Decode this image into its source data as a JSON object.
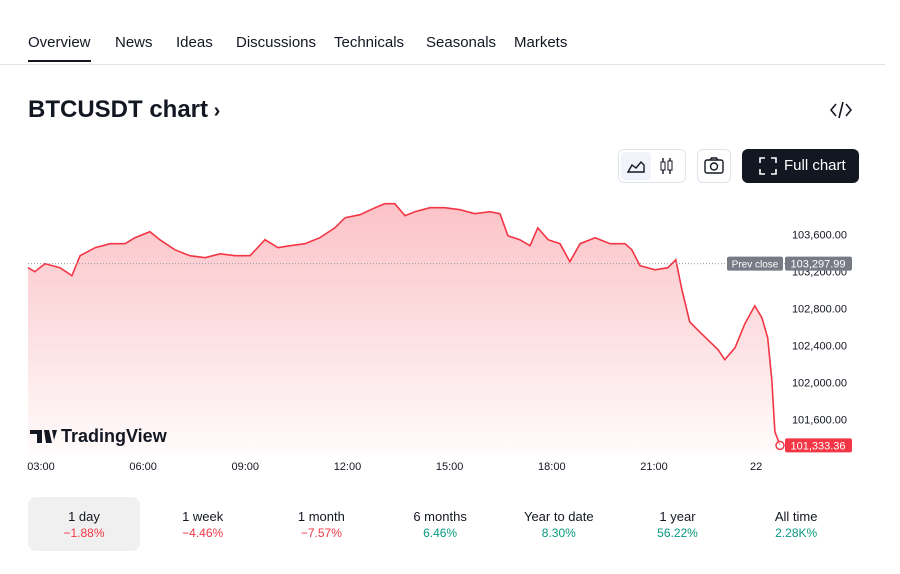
{
  "nav": {
    "tabs": [
      "Overview",
      "News",
      "Ideas",
      "Discussions",
      "Technicals",
      "Seasonals",
      "Markets"
    ],
    "active": 0
  },
  "header": {
    "title": "BTCUSDT chart",
    "full_chart": "Full chart"
  },
  "chart_data": {
    "type": "area",
    "color": "#f23645",
    "watermark": "TradingView",
    "x": [
      2.62,
      2.82,
      3.12,
      3.56,
      3.91,
      4.15,
      4.59,
      5.03,
      5.47,
      5.76,
      6.2,
      6.49,
      6.93,
      7.37,
      7.82,
      8.26,
      8.7,
      9.14,
      9.58,
      9.96,
      10.31,
      10.75,
      11.19,
      11.63,
      11.93,
      12.37,
      12.81,
      13.1,
      13.39,
      13.69,
      13.98,
      14.42,
      14.86,
      15.3,
      15.74,
      16.18,
      16.48,
      16.71,
      17.06,
      17.36,
      17.59,
      17.89,
      18.24,
      18.53,
      18.83,
      19.27,
      19.71,
      20.15,
      20.35,
      20.59,
      21.03,
      21.41,
      21.64,
      21.82,
      22.05,
      22.34,
      22.64,
      22.88,
      23.08,
      23.38,
      23.67,
      23.96,
      24.17,
      24.34,
      24.46,
      24.55,
      24.7
    ],
    "values": [
      103254,
      103211,
      103297,
      103254,
      103168,
      103384,
      103470,
      103514,
      103514,
      103578,
      103643,
      103557,
      103449,
      103384,
      103362,
      103405,
      103384,
      103384,
      103557,
      103470,
      103492,
      103514,
      103578,
      103686,
      103795,
      103827,
      103903,
      103946,
      103946,
      103816,
      103859,
      103903,
      103903,
      103881,
      103838,
      103859,
      103838,
      103600,
      103557,
      103492,
      103686,
      103557,
      103514,
      103319,
      103514,
      103578,
      103514,
      103514,
      103449,
      103276,
      103232,
      103254,
      103341,
      103016,
      102670,
      102562,
      102454,
      102368,
      102260,
      102389,
      102649,
      102843,
      102714,
      102497,
      102043,
      101481,
      101333.36
    ],
    "xlim": [
      2.62,
      24.7
    ],
    "xticks": [
      {
        "value": 3,
        "label": "03:00"
      },
      {
        "value": 6,
        "label": "06:00"
      },
      {
        "value": 9,
        "label": "09:00"
      },
      {
        "value": 12,
        "label": "12:00"
      },
      {
        "value": 15,
        "label": "15:00"
      },
      {
        "value": 18,
        "label": "18:00"
      },
      {
        "value": 21,
        "label": "21:00"
      },
      {
        "value": 24,
        "label": "22"
      }
    ],
    "ylim": [
      101230,
      104040
    ],
    "yticks": [
      {
        "value": 101600,
        "label": "101,600.00"
      },
      {
        "value": 102000,
        "label": "102,000.00"
      },
      {
        "value": 102400,
        "label": "102,400.00"
      },
      {
        "value": 102800,
        "label": "102,800.00"
      },
      {
        "value": 103200,
        "label": "103,200.00"
      },
      {
        "value": 103600,
        "label": "103,600.00"
      }
    ],
    "prev_close": {
      "label": "Prev close",
      "value": 103297.99,
      "value_label": "103,297.99"
    },
    "last_price": {
      "value": 101333.36,
      "label": "101,333.36"
    }
  },
  "periods": {
    "selected": 0,
    "items": [
      {
        "label": "1 day",
        "change": "−1.88%",
        "color": "#f23645"
      },
      {
        "label": "1 week",
        "change": "−4.46%",
        "color": "#f23645"
      },
      {
        "label": "1 month",
        "change": "−7.57%",
        "color": "#f23645"
      },
      {
        "label": "6 months",
        "change": "6.46%",
        "color": "#089981"
      },
      {
        "label": "Year to date",
        "change": "8.30%",
        "color": "#089981"
      },
      {
        "label": "1 year",
        "change": "56.22%",
        "color": "#089981"
      },
      {
        "label": "All time",
        "change": "2.28K%",
        "color": "#089981"
      }
    ]
  }
}
